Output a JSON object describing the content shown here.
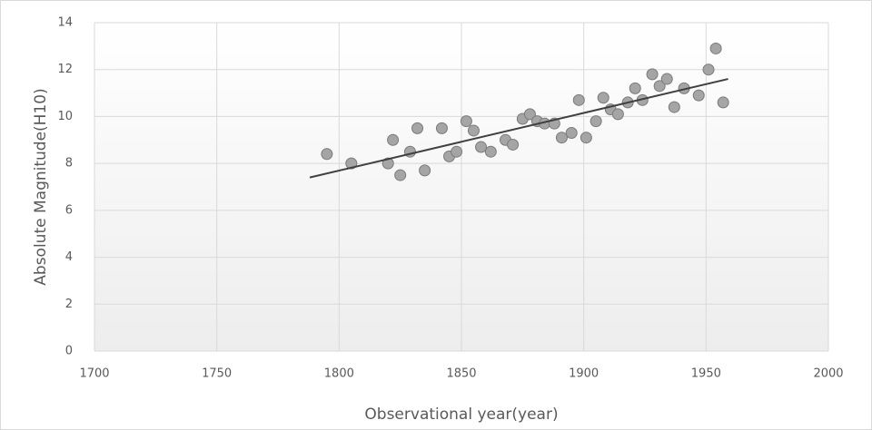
{
  "chart_data": {
    "type": "scatter",
    "xlabel": "Observational year(year)",
    "ylabel": "Absolute Magnitude(H10)",
    "xlim": [
      1700,
      2000
    ],
    "xticks": [
      1700,
      1750,
      1800,
      1850,
      1900,
      1950,
      2000
    ],
    "ylim": [
      0,
      14
    ],
    "yticks": [
      0,
      2,
      4,
      6,
      8,
      10,
      12,
      14
    ],
    "grid": true,
    "x": [
      1795,
      1805,
      1820,
      1822,
      1825,
      1829,
      1832,
      1835,
      1842,
      1845,
      1848,
      1852,
      1855,
      1858,
      1862,
      1868,
      1871,
      1875,
      1878,
      1881,
      1884,
      1888,
      1891,
      1895,
      1898,
      1901,
      1905,
      1908,
      1911,
      1914,
      1918,
      1921,
      1924,
      1928,
      1931,
      1934,
      1937,
      1941,
      1947,
      1951,
      1954,
      1957
    ],
    "values": [
      8.4,
      8.0,
      8.0,
      9.0,
      7.5,
      8.5,
      9.5,
      7.7,
      9.5,
      8.3,
      8.5,
      9.8,
      9.4,
      8.7,
      8.5,
      9.0,
      8.8,
      9.9,
      10.1,
      9.8,
      9.7,
      9.7,
      9.1,
      9.3,
      10.7,
      9.1,
      9.8,
      10.8,
      10.3,
      10.1,
      10.6,
      11.2,
      10.7,
      11.8,
      11.3,
      11.6,
      10.4,
      11.2,
      10.9,
      12.0,
      12.9,
      10.6
    ],
    "color": "#a5a5a5",
    "trendline": {
      "x": [
        1788,
        1959
      ],
      "values": [
        7.4,
        11.6
      ],
      "color": "#404040"
    }
  }
}
